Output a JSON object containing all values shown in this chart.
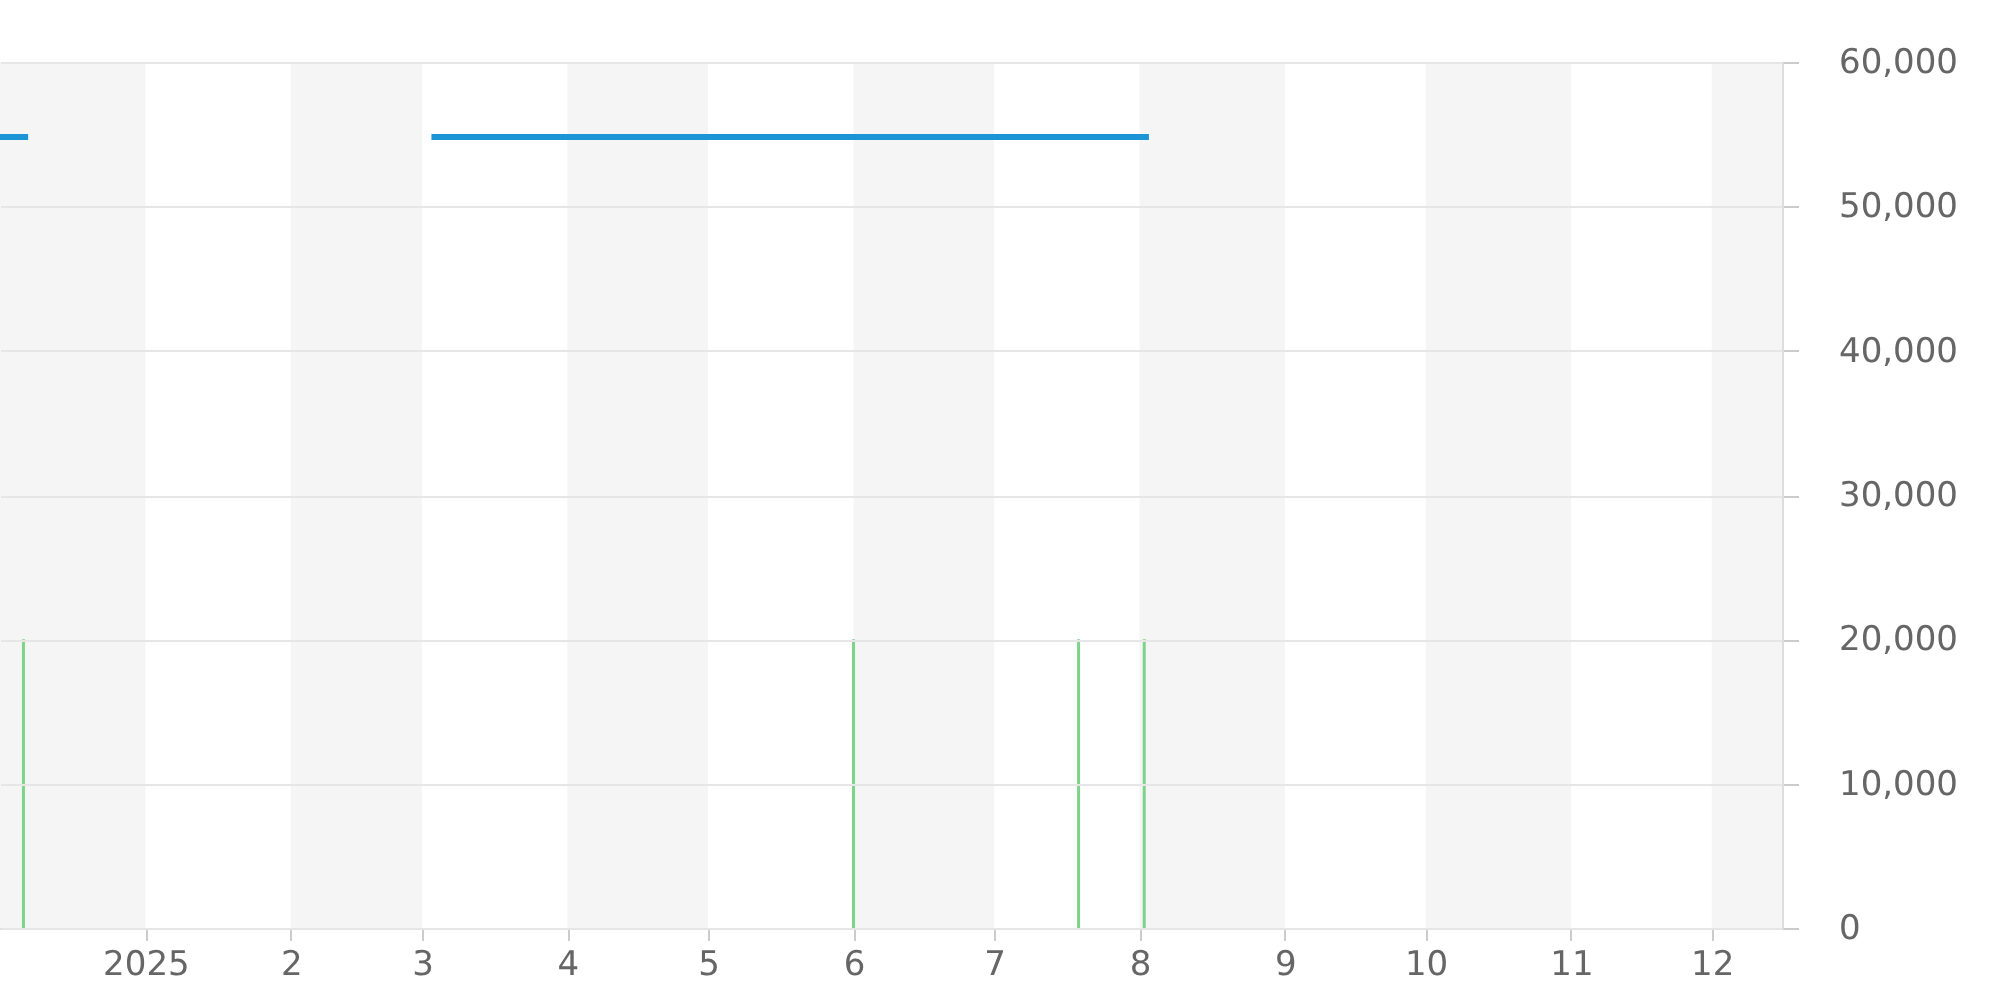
{
  "chart_data": {
    "type": "line",
    "series": [
      {
        "type": "bar",
        "color": "#7ed38b",
        "x": [
          "2024-12-06",
          "2025-06-01",
          "2025-07-19",
          "2025-08-02"
        ],
        "values": [
          20000,
          20000,
          20000,
          20000
        ]
      },
      {
        "color": "#1b95d6",
        "x": [
          "2024-12-01",
          "2024-12-07",
          "2024-12-08",
          "2025-03-03",
          "2025-08-03"
        ],
        "values": [
          54800,
          54800,
          null,
          54800,
          54800
        ]
      }
    ],
    "xlim": [
      "2024-12-01",
      "2025-12-16"
    ],
    "xticks": [
      {
        "value": "2025-01-01",
        "label": "2025"
      },
      {
        "value": "2025-02-01",
        "label": "2"
      },
      {
        "value": "2025-03-01",
        "label": "3"
      },
      {
        "value": "2025-04-01",
        "label": "4"
      },
      {
        "value": "2025-05-01",
        "label": "5"
      },
      {
        "value": "2025-06-01",
        "label": "6"
      },
      {
        "value": "2025-07-01",
        "label": "7"
      },
      {
        "value": "2025-08-01",
        "label": "8"
      },
      {
        "value": "2025-09-01",
        "label": "9"
      },
      {
        "value": "2025-10-01",
        "label": "10"
      },
      {
        "value": "2025-11-01",
        "label": "11"
      },
      {
        "value": "2025-12-01",
        "label": "12"
      }
    ],
    "ylim": [
      0,
      60000
    ],
    "yticks": [
      {
        "value": 0,
        "label": "0"
      },
      {
        "value": 10000,
        "label": "10,000"
      },
      {
        "value": 20000,
        "label": "20,000"
      },
      {
        "value": 30000,
        "label": "30,000"
      },
      {
        "value": 40000,
        "label": "40,000"
      },
      {
        "value": 50000,
        "label": "50,000"
      },
      {
        "value": 60000,
        "label": "60,000"
      }
    ],
    "grid": "y",
    "bands": [
      {
        "axis": "x",
        "from": "2024-12-01",
        "to": "2025-01-01",
        "color": "#f5f5f5"
      },
      {
        "axis": "x",
        "from": "2025-02-01",
        "to": "2025-03-01",
        "color": "#f5f5f5"
      },
      {
        "axis": "x",
        "from": "2025-04-01",
        "to": "2025-05-01",
        "color": "#f5f5f5"
      },
      {
        "axis": "x",
        "from": "2025-06-01",
        "to": "2025-07-01",
        "color": "#f5f5f5"
      },
      {
        "axis": "x",
        "from": "2025-08-01",
        "to": "2025-09-01",
        "color": "#f5f5f5"
      },
      {
        "axis": "x",
        "from": "2025-10-01",
        "to": "2025-11-01",
        "color": "#f5f5f5"
      },
      {
        "axis": "x",
        "from": "2025-12-01",
        "to": "2025-12-16",
        "color": "#f5f5f5"
      }
    ]
  }
}
